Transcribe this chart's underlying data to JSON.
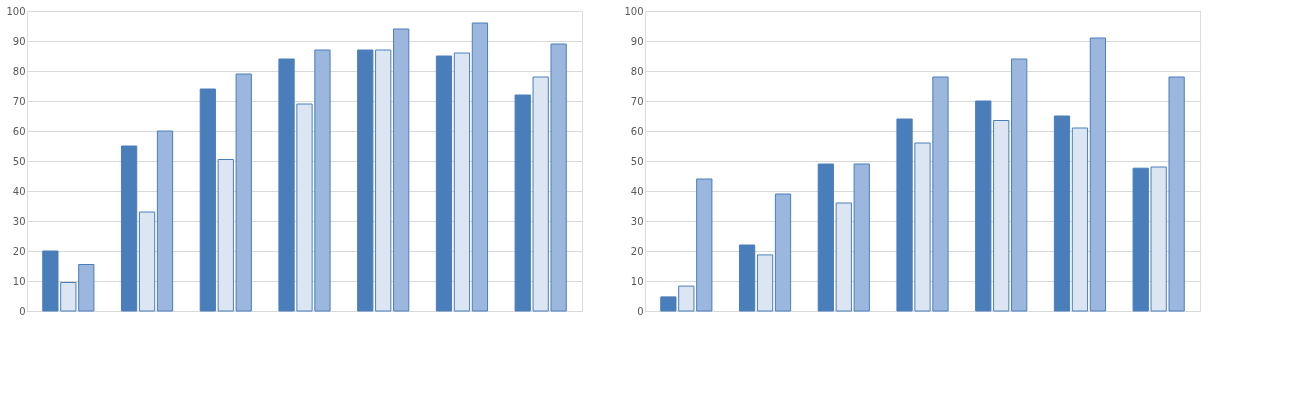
{
  "chart_data": [
    {
      "type": "bar",
      "categories": [
        null,
        null,
        null,
        null,
        null,
        null,
        null
      ],
      "ylim": [
        0,
        100
      ],
      "yticks": [
        0,
        10,
        20,
        30,
        40,
        50,
        60,
        70,
        80,
        90,
        100
      ],
      "grid": "y",
      "legend": false,
      "series": [
        {
          "color": "#4a7ebb",
          "values": [
            20,
            55,
            74,
            84,
            87,
            85,
            72
          ]
        },
        {
          "color": "#dce6f2",
          "values": [
            9.5,
            33,
            50.5,
            69,
            87,
            86,
            78
          ]
        },
        {
          "color": "#9bb7dd",
          "values": [
            15.5,
            60,
            79,
            87,
            94,
            96,
            89
          ]
        }
      ]
    },
    {
      "type": "bar",
      "categories": [
        null,
        null,
        null,
        null,
        null,
        null,
        null
      ],
      "ylim": [
        0,
        100
      ],
      "yticks": [
        0,
        10,
        20,
        30,
        40,
        50,
        60,
        70,
        80,
        90,
        100
      ],
      "grid": "y",
      "legend": false,
      "series": [
        {
          "color": "#4a7ebb",
          "values": [
            4.7,
            22,
            49,
            64,
            70,
            65,
            47.6
          ]
        },
        {
          "color": "#dce6f2",
          "values": [
            8.3,
            18.7,
            36,
            56,
            63.5,
            61,
            48
          ]
        },
        {
          "color": "#9bb7dd",
          "values": [
            44,
            39,
            49,
            78,
            84,
            91,
            78
          ]
        }
      ]
    }
  ]
}
